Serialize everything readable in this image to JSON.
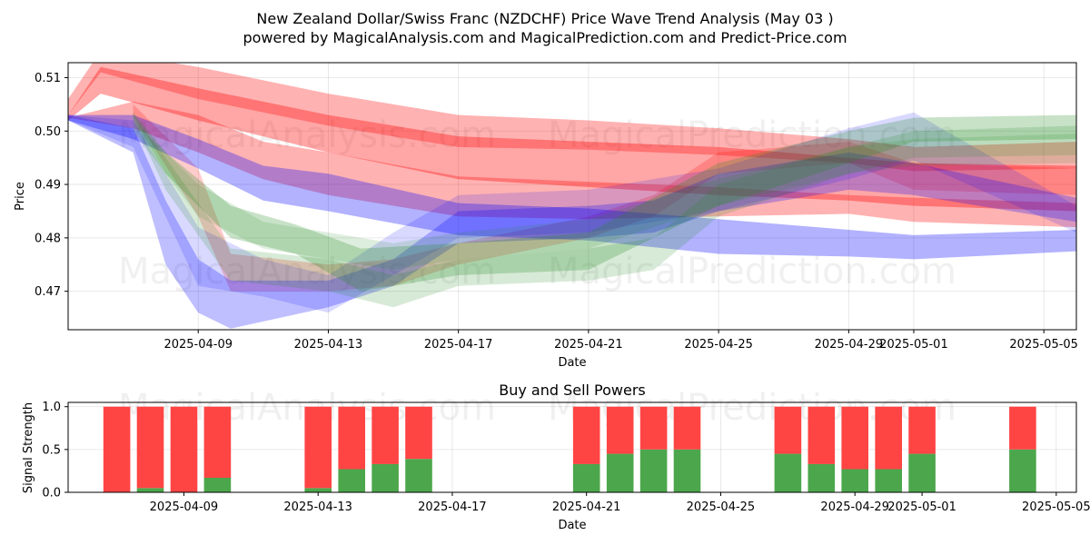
{
  "header": {
    "title": "New Zealand Dollar/Swiss Franc (NZDCHF) Price Wave Trend Analysis (May 03 )",
    "subtitle": "powered by MagicalAnalysis.com and MagicalPrediction.com and Predict-Price.com"
  },
  "watermarks": [
    "MagicalAnalysis.com",
    "MagicalPrediction.com"
  ],
  "colors": {
    "red": "#ff0000",
    "blue": "#0000ff",
    "green": "#228b22",
    "buy": "#4ca64c",
    "sell": "#ff4444"
  },
  "chart_data": [
    {
      "type": "area",
      "title": "",
      "xlabel": "Date",
      "ylabel": "Price",
      "x_range": [
        "2025-04-05",
        "2025-05-06"
      ],
      "ylim": [
        0.4628,
        0.5128
      ],
      "x_ticks": [
        "2025-04-09",
        "2025-04-13",
        "2025-04-17",
        "2025-04-21",
        "2025-04-25",
        "2025-04-29",
        "2025-05-01",
        "2025-05-05"
      ],
      "y_ticks": [
        "0.47",
        "0.48",
        "0.49",
        "0.50",
        "0.51"
      ],
      "grid": true,
      "bands": [
        {
          "color": "red",
          "opacity": 0.3,
          "x": [
            "2025-04-05",
            "2025-04-06",
            "2025-04-09",
            "2025-04-13",
            "2025-04-17",
            "2025-04-21",
            "2025-04-25",
            "2025-04-29",
            "2025-05-01",
            "2025-05-06"
          ],
          "upper": [
            0.506,
            0.515,
            0.512,
            0.507,
            0.503,
            0.502,
            0.5005,
            0.4985,
            0.497,
            0.498
          ],
          "lower": [
            0.503,
            0.511,
            0.506,
            0.501,
            0.497,
            0.4965,
            0.4955,
            0.494,
            0.4925,
            0.493
          ]
        },
        {
          "color": "red",
          "opacity": 0.35,
          "x": [
            "2025-04-05",
            "2025-04-06",
            "2025-04-09",
            "2025-04-13",
            "2025-04-17",
            "2025-04-21",
            "2025-04-25",
            "2025-04-29",
            "2025-05-01",
            "2025-05-06"
          ],
          "upper": [
            0.503,
            0.512,
            0.508,
            0.503,
            0.499,
            0.498,
            0.497,
            0.495,
            0.494,
            0.4935
          ],
          "lower": [
            0.502,
            0.507,
            0.502,
            0.496,
            0.491,
            0.4895,
            0.488,
            0.487,
            0.486,
            0.485
          ]
        },
        {
          "color": "red",
          "opacity": 0.3,
          "x": [
            "2025-04-05",
            "2025-04-07",
            "2025-04-09",
            "2025-04-11",
            "2025-04-13",
            "2025-04-17",
            "2025-04-21",
            "2025-04-25",
            "2025-04-29",
            "2025-05-01",
            "2025-05-06"
          ],
          "upper": [
            0.5025,
            0.5055,
            0.503,
            0.498,
            0.496,
            0.4915,
            0.4905,
            0.4895,
            0.488,
            0.4875,
            0.4865
          ],
          "lower": [
            0.5025,
            0.5005,
            0.496,
            0.491,
            0.488,
            0.484,
            0.4835,
            0.484,
            0.4845,
            0.483,
            0.482
          ]
        },
        {
          "color": "red",
          "opacity": 0.2,
          "x": [
            "2025-04-07",
            "2025-04-09",
            "2025-04-10",
            "2025-04-13",
            "2025-04-15",
            "2025-04-17",
            "2025-04-21",
            "2025-04-23",
            "2025-04-25",
            "2025-04-29",
            "2025-05-01",
            "2025-05-06"
          ],
          "upper": [
            0.505,
            0.493,
            0.477,
            0.475,
            0.476,
            0.479,
            0.484,
            0.488,
            0.496,
            0.498,
            0.494,
            0.493
          ],
          "lower": [
            0.503,
            0.484,
            0.47,
            0.47,
            0.471,
            0.475,
            0.48,
            0.484,
            0.492,
            0.494,
            0.489,
            0.488
          ]
        },
        {
          "color": "blue",
          "opacity": 0.3,
          "x": [
            "2025-04-05",
            "2025-04-07",
            "2025-04-09",
            "2025-04-11",
            "2025-04-13",
            "2025-04-17",
            "2025-04-21",
            "2025-04-25",
            "2025-04-29",
            "2025-05-01",
            "2025-05-06"
          ],
          "upper": [
            0.503,
            0.503,
            0.4985,
            0.4935,
            0.492,
            0.4865,
            0.4855,
            0.4835,
            0.4815,
            0.4805,
            0.4815
          ],
          "lower": [
            0.502,
            0.4985,
            0.493,
            0.487,
            0.485,
            0.4805,
            0.4795,
            0.477,
            0.4765,
            0.476,
            0.4775
          ]
        },
        {
          "color": "blue",
          "opacity": 0.25,
          "x": [
            "2025-04-05",
            "2025-04-07",
            "2025-04-08",
            "2025-04-09",
            "2025-04-10",
            "2025-04-13",
            "2025-04-15",
            "2025-04-17",
            "2025-04-21",
            "2025-04-23",
            "2025-04-25",
            "2025-04-29",
            "2025-05-01",
            "2025-05-06"
          ],
          "upper": [
            0.503,
            0.5005,
            0.487,
            0.476,
            0.472,
            0.472,
            0.476,
            0.485,
            0.486,
            0.487,
            0.492,
            0.496,
            0.494,
            0.4875
          ],
          "lower": [
            0.502,
            0.496,
            0.475,
            0.466,
            0.463,
            0.467,
            0.471,
            0.479,
            0.48,
            0.481,
            0.485,
            0.489,
            0.488,
            0.483
          ]
        },
        {
          "color": "blue",
          "opacity": 0.15,
          "x": [
            "2025-04-05",
            "2025-04-07",
            "2025-04-09",
            "2025-04-11",
            "2025-04-13",
            "2025-04-15",
            "2025-04-17",
            "2025-04-21",
            "2025-04-25",
            "2025-04-29",
            "2025-05-01",
            "2025-05-06"
          ],
          "upper": [
            0.503,
            0.502,
            0.482,
            0.476,
            0.473,
            0.481,
            0.488,
            0.489,
            0.493,
            0.5005,
            0.5035,
            0.486
          ],
          "lower": [
            0.502,
            0.497,
            0.471,
            0.469,
            0.466,
            0.473,
            0.48,
            0.481,
            0.485,
            0.491,
            0.4945,
            0.481
          ]
        },
        {
          "color": "green",
          "opacity": 0.25,
          "x": [
            "2025-04-07",
            "2025-04-08",
            "2025-04-10",
            "2025-04-12",
            "2025-04-14",
            "2025-04-17",
            "2025-04-21",
            "2025-04-25",
            "2025-04-29",
            "2025-05-01",
            "2025-05-06"
          ],
          "upper": [
            0.5035,
            0.496,
            0.486,
            0.4825,
            0.478,
            0.479,
            0.481,
            0.494,
            0.5,
            0.5025,
            0.503
          ],
          "lower": [
            0.5025,
            0.492,
            0.48,
            0.477,
            0.47,
            0.473,
            0.474,
            0.486,
            0.494,
            0.498,
            0.4985
          ]
        },
        {
          "color": "green",
          "opacity": 0.18,
          "x": [
            "2025-04-07",
            "2025-04-08",
            "2025-04-10",
            "2025-04-13",
            "2025-04-15",
            "2025-04-17",
            "2025-04-21",
            "2025-04-23",
            "2025-04-25",
            "2025-04-29",
            "2025-05-01",
            "2025-05-06"
          ],
          "upper": [
            0.503,
            0.495,
            0.478,
            0.476,
            0.473,
            0.476,
            0.478,
            0.48,
            0.49,
            0.497,
            0.5,
            0.501
          ],
          "lower": [
            0.502,
            0.489,
            0.472,
            0.47,
            0.467,
            0.471,
            0.472,
            0.474,
            0.484,
            0.492,
            0.495,
            0.4955
          ]
        },
        {
          "color": "green",
          "opacity": 0.15,
          "x": [
            "2025-04-07",
            "2025-04-09",
            "2025-04-11",
            "2025-04-13",
            "2025-04-15",
            "2025-04-17",
            "2025-04-21",
            "2025-04-25",
            "2025-04-29",
            "2025-05-01",
            "2025-05-06"
          ],
          "upper": [
            0.502,
            0.49,
            0.483,
            0.481,
            0.479,
            0.481,
            0.4835,
            0.491,
            0.497,
            0.4985,
            0.4995
          ],
          "lower": [
            0.5,
            0.484,
            0.478,
            0.476,
            0.474,
            0.476,
            0.478,
            0.486,
            0.492,
            0.4935,
            0.494
          ]
        }
      ]
    },
    {
      "type": "bar",
      "title": "Buy and Sell Powers",
      "xlabel": "Date",
      "ylabel": "Signal Strength",
      "ylim": [
        0,
        1.05
      ],
      "x_ticks": [
        "2025-04-09",
        "2025-04-13",
        "2025-04-17",
        "2025-04-21",
        "2025-04-25",
        "2025-04-29",
        "2025-05-01",
        "2025-05-05"
      ],
      "y_ticks": [
        "0.0",
        "0.5",
        "1.0"
      ],
      "grid": true,
      "categories": [
        "2025-04-07",
        "2025-04-08",
        "2025-04-09",
        "2025-04-10",
        "2025-04-13",
        "2025-04-14",
        "2025-04-15",
        "2025-04-16",
        "2025-04-21",
        "2025-04-22",
        "2025-04-23",
        "2025-04-24",
        "2025-04-27",
        "2025-04-28",
        "2025-04-29",
        "2025-04-30",
        "2025-05-01",
        "2025-05-04"
      ],
      "series": [
        {
          "name": "Buy",
          "values": [
            0.0,
            0.05,
            0.0,
            0.17,
            0.05,
            0.27,
            0.33,
            0.39,
            0.33,
            0.45,
            0.5,
            0.5,
            0.45,
            0.33,
            0.27,
            0.27,
            0.45,
            0.5
          ]
        },
        {
          "name": "Sell",
          "values": [
            1.0,
            0.95,
            1.0,
            0.83,
            0.95,
            0.73,
            0.67,
            0.61,
            0.67,
            0.55,
            0.5,
            0.5,
            0.55,
            0.67,
            0.73,
            0.73,
            0.55,
            0.5
          ]
        }
      ]
    }
  ]
}
